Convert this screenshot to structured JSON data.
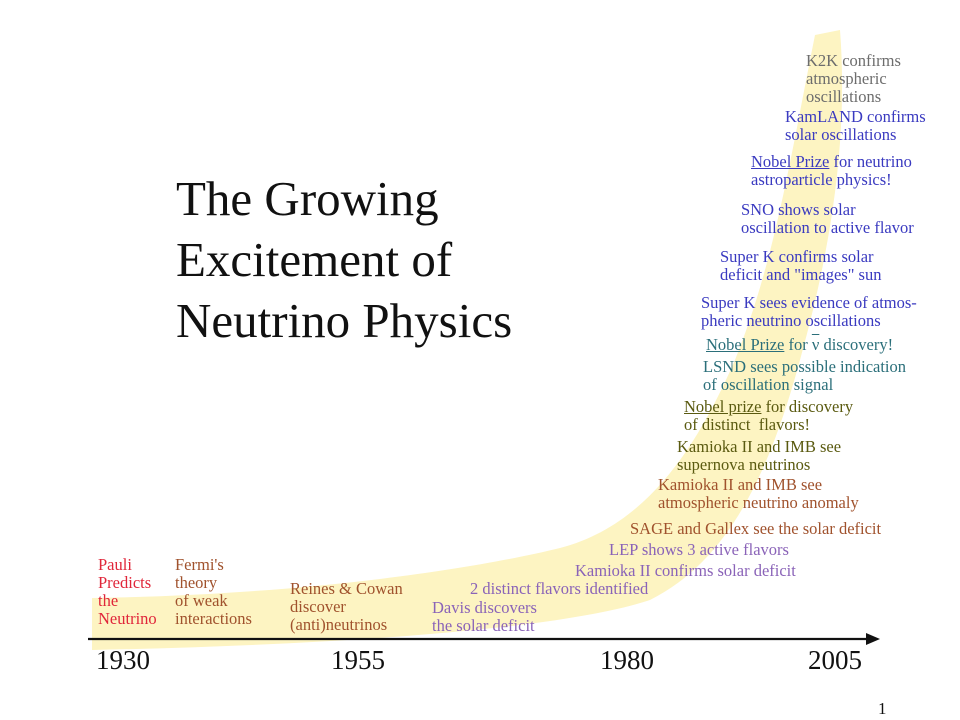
{
  "title": {
    "lines": [
      "The Growing",
      "Excitement of",
      "Neutrino Physics"
    ]
  },
  "timeline": {
    "years": [
      "1930",
      "1955",
      "1980",
      "2005"
    ]
  },
  "events": {
    "pauli": [
      "Pauli",
      "Predicts",
      "the",
      "Neutrino"
    ],
    "fermi": [
      "Fermi's",
      "theory",
      "of weak",
      "interactions"
    ],
    "reines": [
      "Reines & Cowan",
      "discover",
      "(anti)neutrinos"
    ],
    "davis": [
      "Davis discovers",
      "the solar deficit"
    ],
    "two_flavors": "2 distinct flavors identified",
    "kamioka_solar": "Kamioka II confirms solar deficit",
    "lep": "LEP shows 3 active flavors",
    "sage": "SAGE and Gallex see the solar deficit",
    "kamioka_atm": [
      "Kamioka II and IMB see",
      "atmospheric neutrino anomaly"
    ],
    "kamioka_sn": [
      "Kamioka II and IMB see",
      "supernova neutrinos"
    ],
    "nobel_flavors": {
      "link": "Nobel prize",
      "rest": " for discovery",
      "line2": "of distinct  flavors!"
    },
    "lsnd": [
      "LSND sees possible indication",
      "of oscillation signal"
    ],
    "nobel_nu": {
      "link": "Nobel Prize",
      "pre": " for ",
      "symbol": "ν",
      "post": " discovery!"
    },
    "superk_atm": [
      "Super K sees evidence of atmos-",
      "pheric neutrino oscillations"
    ],
    "superk_solar": [
      "Super K confirms solar",
      "deficit and \"images\" sun"
    ],
    "sno": [
      "SNO shows solar",
      "oscillation to active flavor"
    ],
    "nobel_astro": {
      "link": "Nobel Prize",
      "rest": " for neutrino",
      "line2": "astroparticle physics!"
    },
    "kamland": [
      "KamLAND confirms",
      "solar oscillations"
    ],
    "k2k": [
      "K2K confirms",
      "atmospheric",
      "oscillations"
    ]
  },
  "page_number": "1",
  "colors": {
    "band": "#fdf4c2",
    "red": "#e0263a",
    "brown": "#a0522d",
    "purple": "#8a63b8",
    "blue": "#3a3ac0",
    "teal": "#2b6f7a",
    "olive": "#5a5a10",
    "gray": "#6d6d6d"
  }
}
